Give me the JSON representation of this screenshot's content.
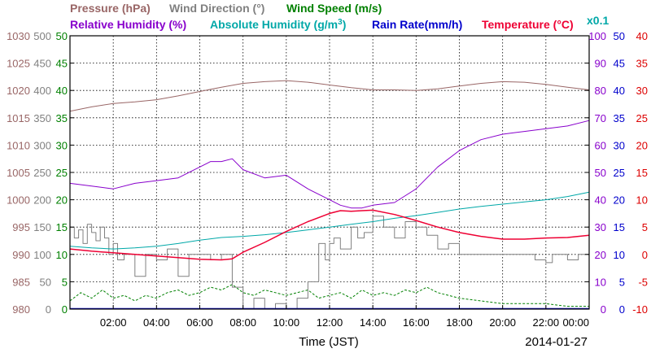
{
  "chart_data": {
    "type": "line",
    "title_row1": {
      "pressure": "Pressure (hPa)",
      "wind_direction": "Wind Direction (°)",
      "wind_speed": "Wind Speed (m/s)"
    },
    "title_row2": {
      "relative_humidity": "Relative Humidity (%)",
      "absolute_humidity": "Absolute Humidity (g/m",
      "absolute_humidity_sup": "3",
      "absolute_humidity_close": ")",
      "rain_rate": "Rain Rate(mm/h)",
      "temperature": "Temperature (°C)",
      "scale_note": "x0.1"
    },
    "xlabel": "Time (JST)",
    "date": "2014-01-27",
    "x_range": [
      0,
      24
    ],
    "x_ticks": [
      {
        "h": 2,
        "label": "02:00"
      },
      {
        "h": 4,
        "label": "04:00"
      },
      {
        "h": 6,
        "label": "06:00"
      },
      {
        "h": 8,
        "label": "08:00"
      },
      {
        "h": 10,
        "label": "10:00"
      },
      {
        "h": 12,
        "label": "12:00"
      },
      {
        "h": 14,
        "label": "14:00"
      },
      {
        "h": 16,
        "label": "16:00"
      },
      {
        "h": 18,
        "label": "18:00"
      },
      {
        "h": 20,
        "label": "20:00"
      },
      {
        "h": 22,
        "label": "22:00"
      },
      {
        "h": 24,
        "label": "00:00"
      }
    ],
    "axes": {
      "pressure": {
        "range": [
          980,
          1030
        ],
        "ticks": [
          "980",
          "985",
          "990",
          "995",
          "1000",
          "1005",
          "1010",
          "1015",
          "1020",
          "1025",
          "1030"
        ],
        "color": "#996666"
      },
      "wind_direction": {
        "range": [
          0,
          500
        ],
        "ticks": [
          "0",
          "50",
          "100",
          "150",
          "200",
          "250",
          "300",
          "350",
          "400",
          "450",
          "500"
        ],
        "color": "#808080"
      },
      "wind_speed": {
        "range": [
          0,
          50
        ],
        "ticks": [
          "0",
          "5",
          "10",
          "15",
          "20",
          "25",
          "30",
          "35",
          "40",
          "45",
          "50"
        ],
        "color": "#008000"
      },
      "humidity": {
        "range": [
          0,
          100
        ],
        "ticks": [
          "0",
          "10",
          "20",
          "30",
          "40",
          "50",
          "60",
          "70",
          "80",
          "90",
          "100"
        ],
        "color": "#8800cc"
      },
      "rain_rate": {
        "range": [
          0,
          50
        ],
        "ticks": [
          "0",
          "5",
          "10",
          "15",
          "20",
          "25",
          "30",
          "35",
          "40",
          "45",
          "50"
        ],
        "color": "#0000cc"
      },
      "temperature": {
        "range": [
          -10,
          40
        ],
        "ticks": [
          "-10",
          "-5",
          "0",
          "5",
          "10",
          "15",
          "20",
          "25",
          "30",
          "35",
          "40"
        ],
        "color": "#dd0000"
      }
    },
    "colors": {
      "pressure": "#996666",
      "wind_direction": "#808080",
      "wind_speed": "#008000",
      "relative_humidity": "#8800cc",
      "absolute_humidity": "#00a8a8",
      "rain_rate": "#0000cc",
      "temperature": "#ee0033"
    },
    "series": [
      {
        "key": "pressure",
        "axis": "pressure",
        "x": [
          0,
          1,
          2,
          3,
          4,
          5,
          6,
          7,
          8,
          9,
          10,
          11,
          12,
          13,
          14,
          15,
          16,
          17,
          18,
          19,
          20,
          21,
          22,
          23,
          24
        ],
        "y": [
          1016.2,
          1017.0,
          1017.6,
          1017.9,
          1018.3,
          1019.0,
          1019.8,
          1020.6,
          1021.3,
          1021.6,
          1021.8,
          1021.5,
          1021.0,
          1020.5,
          1020.1,
          1020.1,
          1020.0,
          1020.3,
          1020.8,
          1021.3,
          1021.6,
          1021.5,
          1021.1,
          1020.6,
          1020.1
        ]
      },
      {
        "key": "relative_humidity",
        "axis": "humidity",
        "x": [
          0,
          1,
          2,
          3,
          4,
          5,
          6,
          6.5,
          7,
          7.5,
          8,
          9,
          10,
          11,
          12,
          12.5,
          13,
          13.5,
          14,
          15,
          16,
          17,
          18,
          19,
          20,
          21,
          22,
          23,
          24
        ],
        "y": [
          46,
          45,
          44,
          46,
          47,
          48,
          52,
          54,
          54,
          55,
          51,
          48,
          49,
          44,
          40,
          38,
          37,
          37,
          38,
          39,
          44,
          52,
          58,
          62,
          64,
          65,
          66,
          67,
          69
        ]
      },
      {
        "key": "absolute_humidity",
        "axis": "rain_rate",
        "x": [
          0,
          1,
          2,
          3,
          4,
          5,
          6,
          7,
          8,
          9,
          10,
          11,
          12,
          13,
          14,
          15,
          16,
          17,
          18,
          19,
          20,
          21,
          22,
          23,
          24
        ],
        "y": [
          11.5,
          11.2,
          11.0,
          11.2,
          11.5,
          12.0,
          12.6,
          13.1,
          13.3,
          13.6,
          14.0,
          14.5,
          15.0,
          15.5,
          16.0,
          16.6,
          17.1,
          17.7,
          18.3,
          18.8,
          19.2,
          19.6,
          20.0,
          20.6,
          21.4
        ]
      },
      {
        "key": "temperature",
        "axis": "temperature",
        "x": [
          0,
          1,
          2,
          3,
          4,
          5,
          6,
          7,
          7.5,
          8,
          9,
          10,
          11,
          12,
          12.5,
          13,
          13.5,
          14,
          15,
          16,
          17,
          18,
          19,
          20,
          21,
          22,
          23,
          24
        ],
        "y": [
          1.0,
          0.6,
          0.3,
          0.0,
          -0.3,
          -0.6,
          -0.9,
          -1.0,
          -0.8,
          0.4,
          2.2,
          4.2,
          6.0,
          7.5,
          8.0,
          7.9,
          8.0,
          8.1,
          7.3,
          6.2,
          5.0,
          4.0,
          3.3,
          2.8,
          2.8,
          3.0,
          3.1,
          3.5
        ]
      },
      {
        "key": "wind_direction",
        "axis": "wind_direction",
        "x": [
          0,
          0.2,
          0.4,
          0.6,
          0.8,
          1.0,
          1.2,
          1.4,
          1.6,
          1.8,
          2.0,
          2.2,
          2.5,
          3.0,
          3.5,
          4.0,
          4.5,
          5.0,
          5.5,
          6.0,
          6.5,
          7.0,
          7.5,
          8.0,
          8.5,
          9.0,
          9.5,
          10.0,
          10.5,
          11.0,
          11.5,
          11.8,
          12.0,
          12.2,
          12.5,
          13.0,
          13.3,
          13.6,
          14.0,
          14.5,
          15.0,
          15.5,
          16.0,
          16.5,
          17.0,
          17.5,
          18.0,
          19.0,
          20.0,
          21.0,
          21.5,
          22.0,
          22.3,
          22.5,
          23.0,
          23.5,
          24.0
        ],
        "y": [
          150,
          130,
          145,
          120,
          155,
          140,
          125,
          150,
          130,
          100,
          120,
          90,
          100,
          60,
          100,
          90,
          110,
          60,
          100,
          100,
          90,
          100,
          40,
          0,
          20,
          0,
          10,
          0,
          20,
          50,
          120,
          90,
          120,
          130,
          110,
          150,
          130,
          140,
          170,
          150,
          130,
          160,
          150,
          135,
          110,
          120,
          100,
          100,
          100,
          100,
          90,
          85,
          100,
          100,
          90,
          100,
          80
        ]
      },
      {
        "key": "wind_speed",
        "axis": "wind_speed",
        "x": [
          0,
          0.5,
          1.0,
          1.5,
          2.0,
          2.5,
          3.0,
          3.5,
          4.0,
          4.5,
          5.0,
          5.5,
          6.0,
          6.5,
          7.0,
          7.5,
          8.0,
          8.5,
          9.0,
          9.5,
          10.0,
          10.5,
          11.0,
          11.5,
          12.0,
          12.5,
          13.0,
          13.5,
          14.0,
          14.5,
          15.0,
          15.5,
          16.0,
          16.5,
          17.0,
          17.5,
          18.0,
          19.0,
          20.0,
          21.0,
          22.0,
          23.0,
          24.0
        ],
        "y": [
          1.5,
          3.0,
          2.0,
          3.5,
          2.0,
          2.5,
          1.5,
          2.5,
          2.0,
          3.0,
          3.5,
          2.5,
          3.0,
          4.0,
          3.5,
          4.5,
          3.0,
          2.5,
          3.5,
          3.0,
          2.5,
          3.0,
          3.5,
          2.0,
          2.5,
          3.0,
          2.0,
          3.5,
          2.5,
          3.0,
          2.5,
          3.5,
          3.0,
          4.0,
          3.0,
          2.5,
          2.0,
          1.5,
          1.0,
          1.0,
          1.0,
          0.5,
          0.5
        ]
      }
    ]
  }
}
